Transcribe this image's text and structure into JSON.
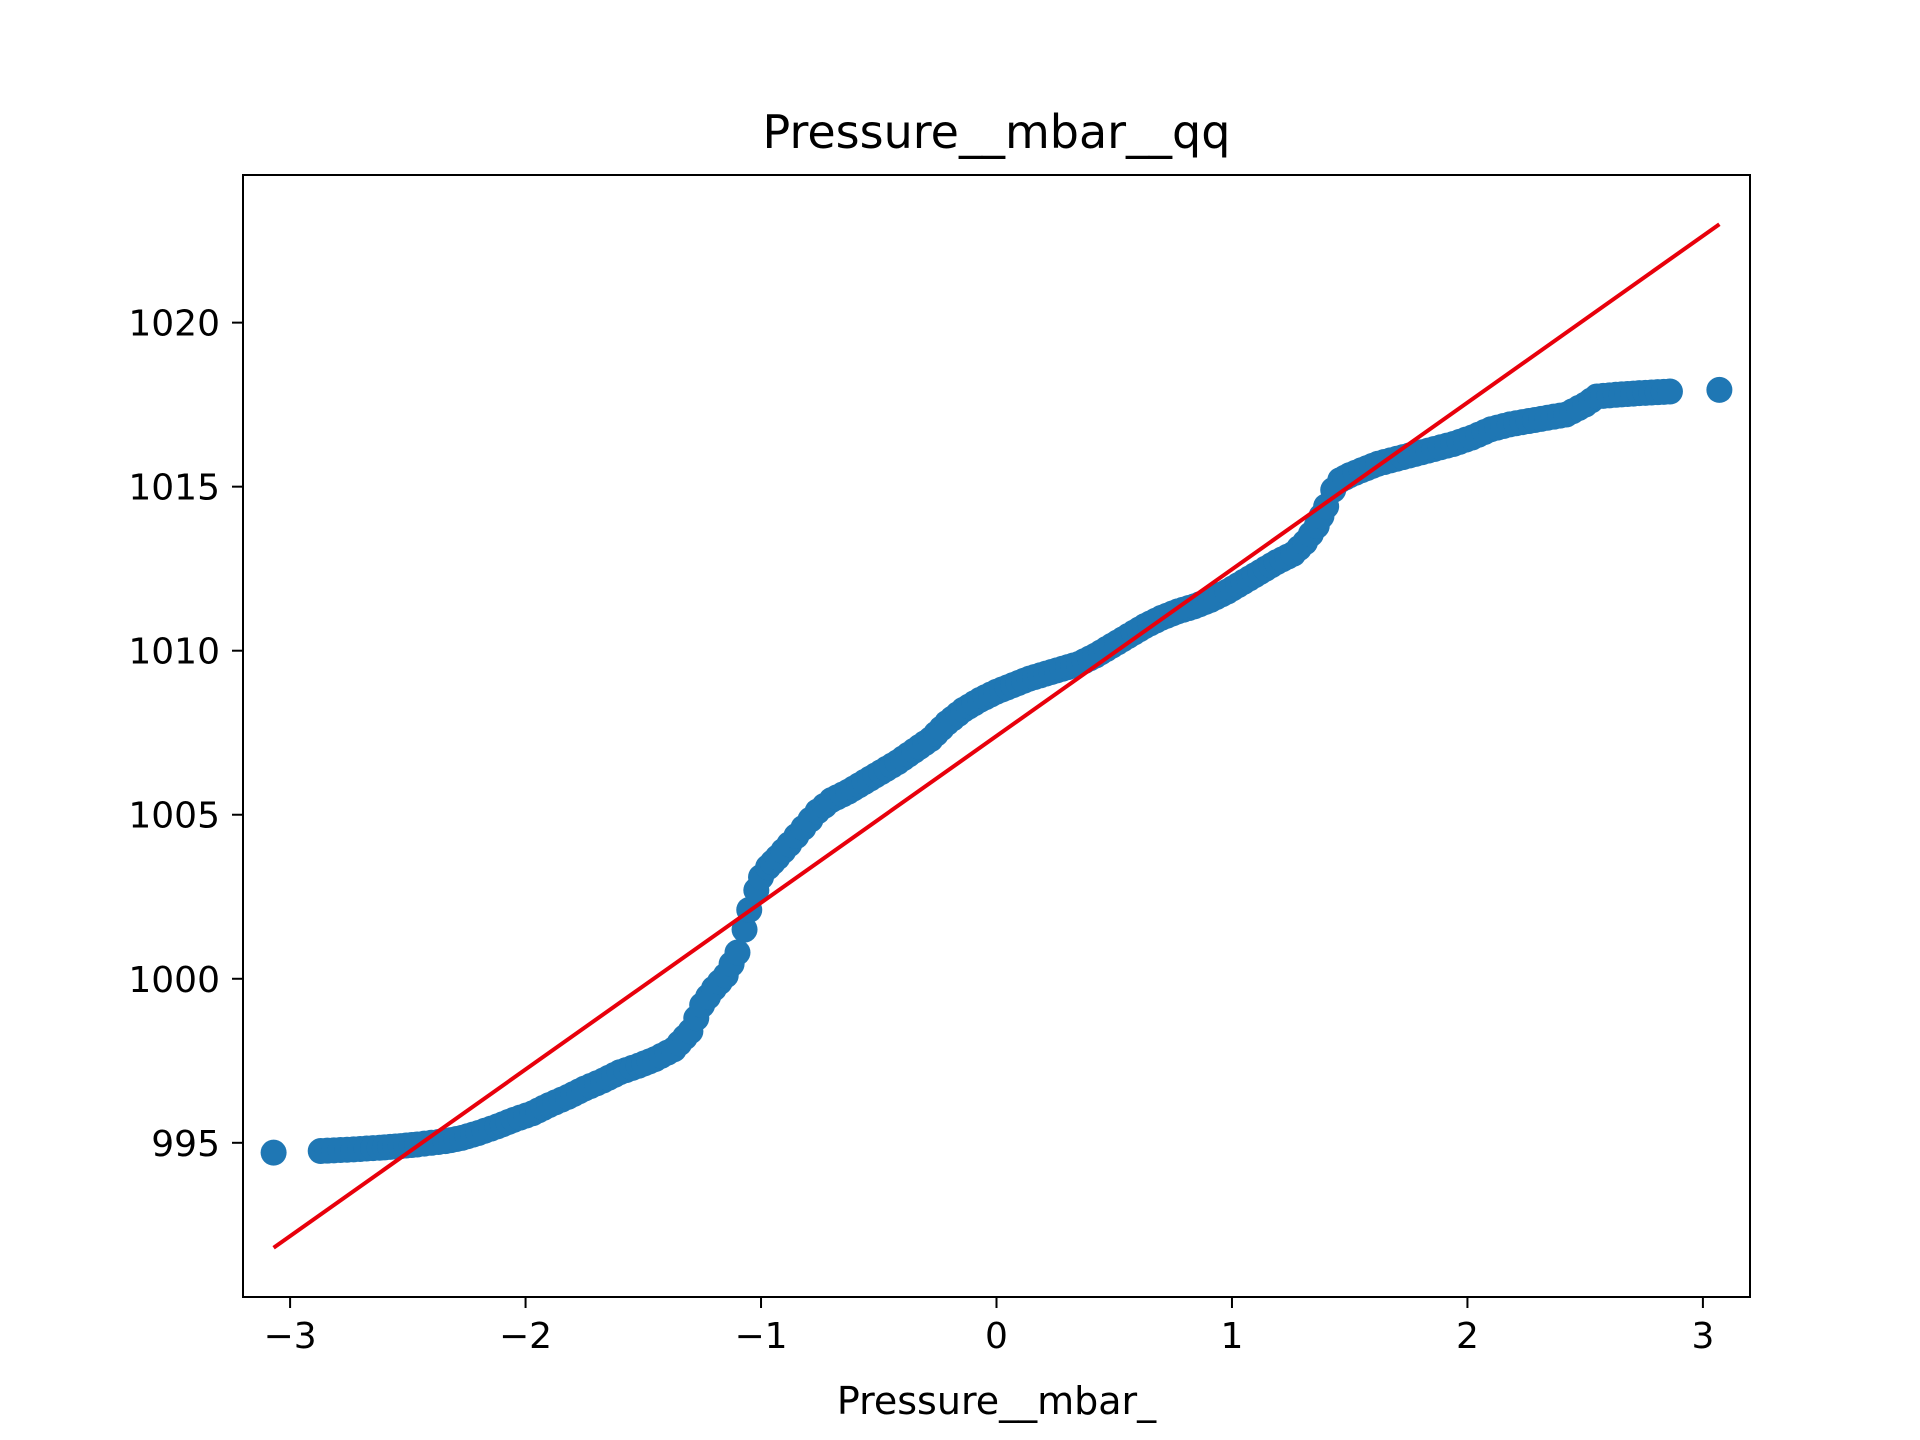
{
  "chart_data": {
    "type": "scatter",
    "title": "Pressure__mbar__qq",
    "xlabel": "Pressure__mbar_",
    "ylabel": "",
    "xlim": [
      -3.2,
      3.2
    ],
    "ylim": [
      990.3,
      1024.5
    ],
    "xticks": [
      -3,
      -2,
      -1,
      0,
      1,
      2,
      3
    ],
    "xtick_labels": [
      "−3",
      "−2",
      "−1",
      "0",
      "1",
      "2",
      "3"
    ],
    "yticks": [
      995,
      1000,
      1005,
      1010,
      1015,
      1020
    ],
    "ytick_labels": [
      "995",
      "1000",
      "1005",
      "1010",
      "1015",
      "1020"
    ],
    "grid": false,
    "legend": "none",
    "series": [
      {
        "kind": "points",
        "color": "#1f77b4",
        "x": [
          -3.07,
          -2.87,
          -2.73,
          -2.62,
          -2.53,
          -2.46,
          -2.4,
          -2.34,
          -2.27,
          -2.2,
          -2.12,
          -2.05,
          -1.97,
          -1.9,
          -1.82,
          -1.75,
          -1.67,
          -1.6,
          -1.52,
          -1.45,
          -1.37,
          -1.3,
          -1.25,
          -1.2,
          -1.15,
          -1.1,
          -1.07,
          -1.05,
          -1.02,
          -1.0,
          -0.97,
          -0.93,
          -0.88,
          -0.82,
          -0.76,
          -0.7,
          -0.63,
          -0.56,
          -0.49,
          -0.42,
          -0.35,
          -0.28,
          -0.21,
          -0.14,
          -0.07,
          0.0,
          0.07,
          0.14,
          0.21,
          0.28,
          0.35,
          0.42,
          0.49,
          0.56,
          0.63,
          0.7,
          0.77,
          0.84,
          0.91,
          0.98,
          1.05,
          1.12,
          1.19,
          1.26,
          1.31,
          1.36,
          1.4,
          1.43,
          1.46,
          1.5,
          1.55,
          1.62,
          1.7,
          1.78,
          1.86,
          1.94,
          2.02,
          2.1,
          2.18,
          2.26,
          2.34,
          2.42,
          2.5,
          2.55,
          2.63,
          2.73,
          2.86,
          3.07
        ],
        "y": [
          994.7,
          994.75,
          994.8,
          994.85,
          994.9,
          994.95,
          995.0,
          995.05,
          995.15,
          995.3,
          995.5,
          995.7,
          995.9,
          996.15,
          996.4,
          996.65,
          996.9,
          997.15,
          997.35,
          997.55,
          997.85,
          998.4,
          999.2,
          999.7,
          1000.1,
          1000.8,
          1001.5,
          1002.1,
          1002.7,
          1003.1,
          1003.4,
          1003.7,
          1004.1,
          1004.6,
          1005.1,
          1005.45,
          1005.7,
          1006.0,
          1006.3,
          1006.6,
          1006.95,
          1007.3,
          1007.8,
          1008.2,
          1008.5,
          1008.75,
          1008.95,
          1009.15,
          1009.3,
          1009.45,
          1009.6,
          1009.85,
          1010.15,
          1010.45,
          1010.75,
          1011.0,
          1011.2,
          1011.35,
          1011.55,
          1011.8,
          1012.1,
          1012.4,
          1012.7,
          1012.95,
          1013.3,
          1013.8,
          1014.4,
          1014.9,
          1015.2,
          1015.35,
          1015.5,
          1015.7,
          1015.85,
          1016.0,
          1016.15,
          1016.3,
          1016.5,
          1016.75,
          1016.9,
          1017.0,
          1017.1,
          1017.2,
          1017.5,
          1017.75,
          1017.8,
          1017.85,
          1017.9,
          1017.95
        ]
      },
      {
        "kind": "line",
        "color": "#e8000b",
        "x": [
          -3.07,
          3.07
        ],
        "y": [
          991.8,
          1023.0
        ]
      }
    ]
  }
}
